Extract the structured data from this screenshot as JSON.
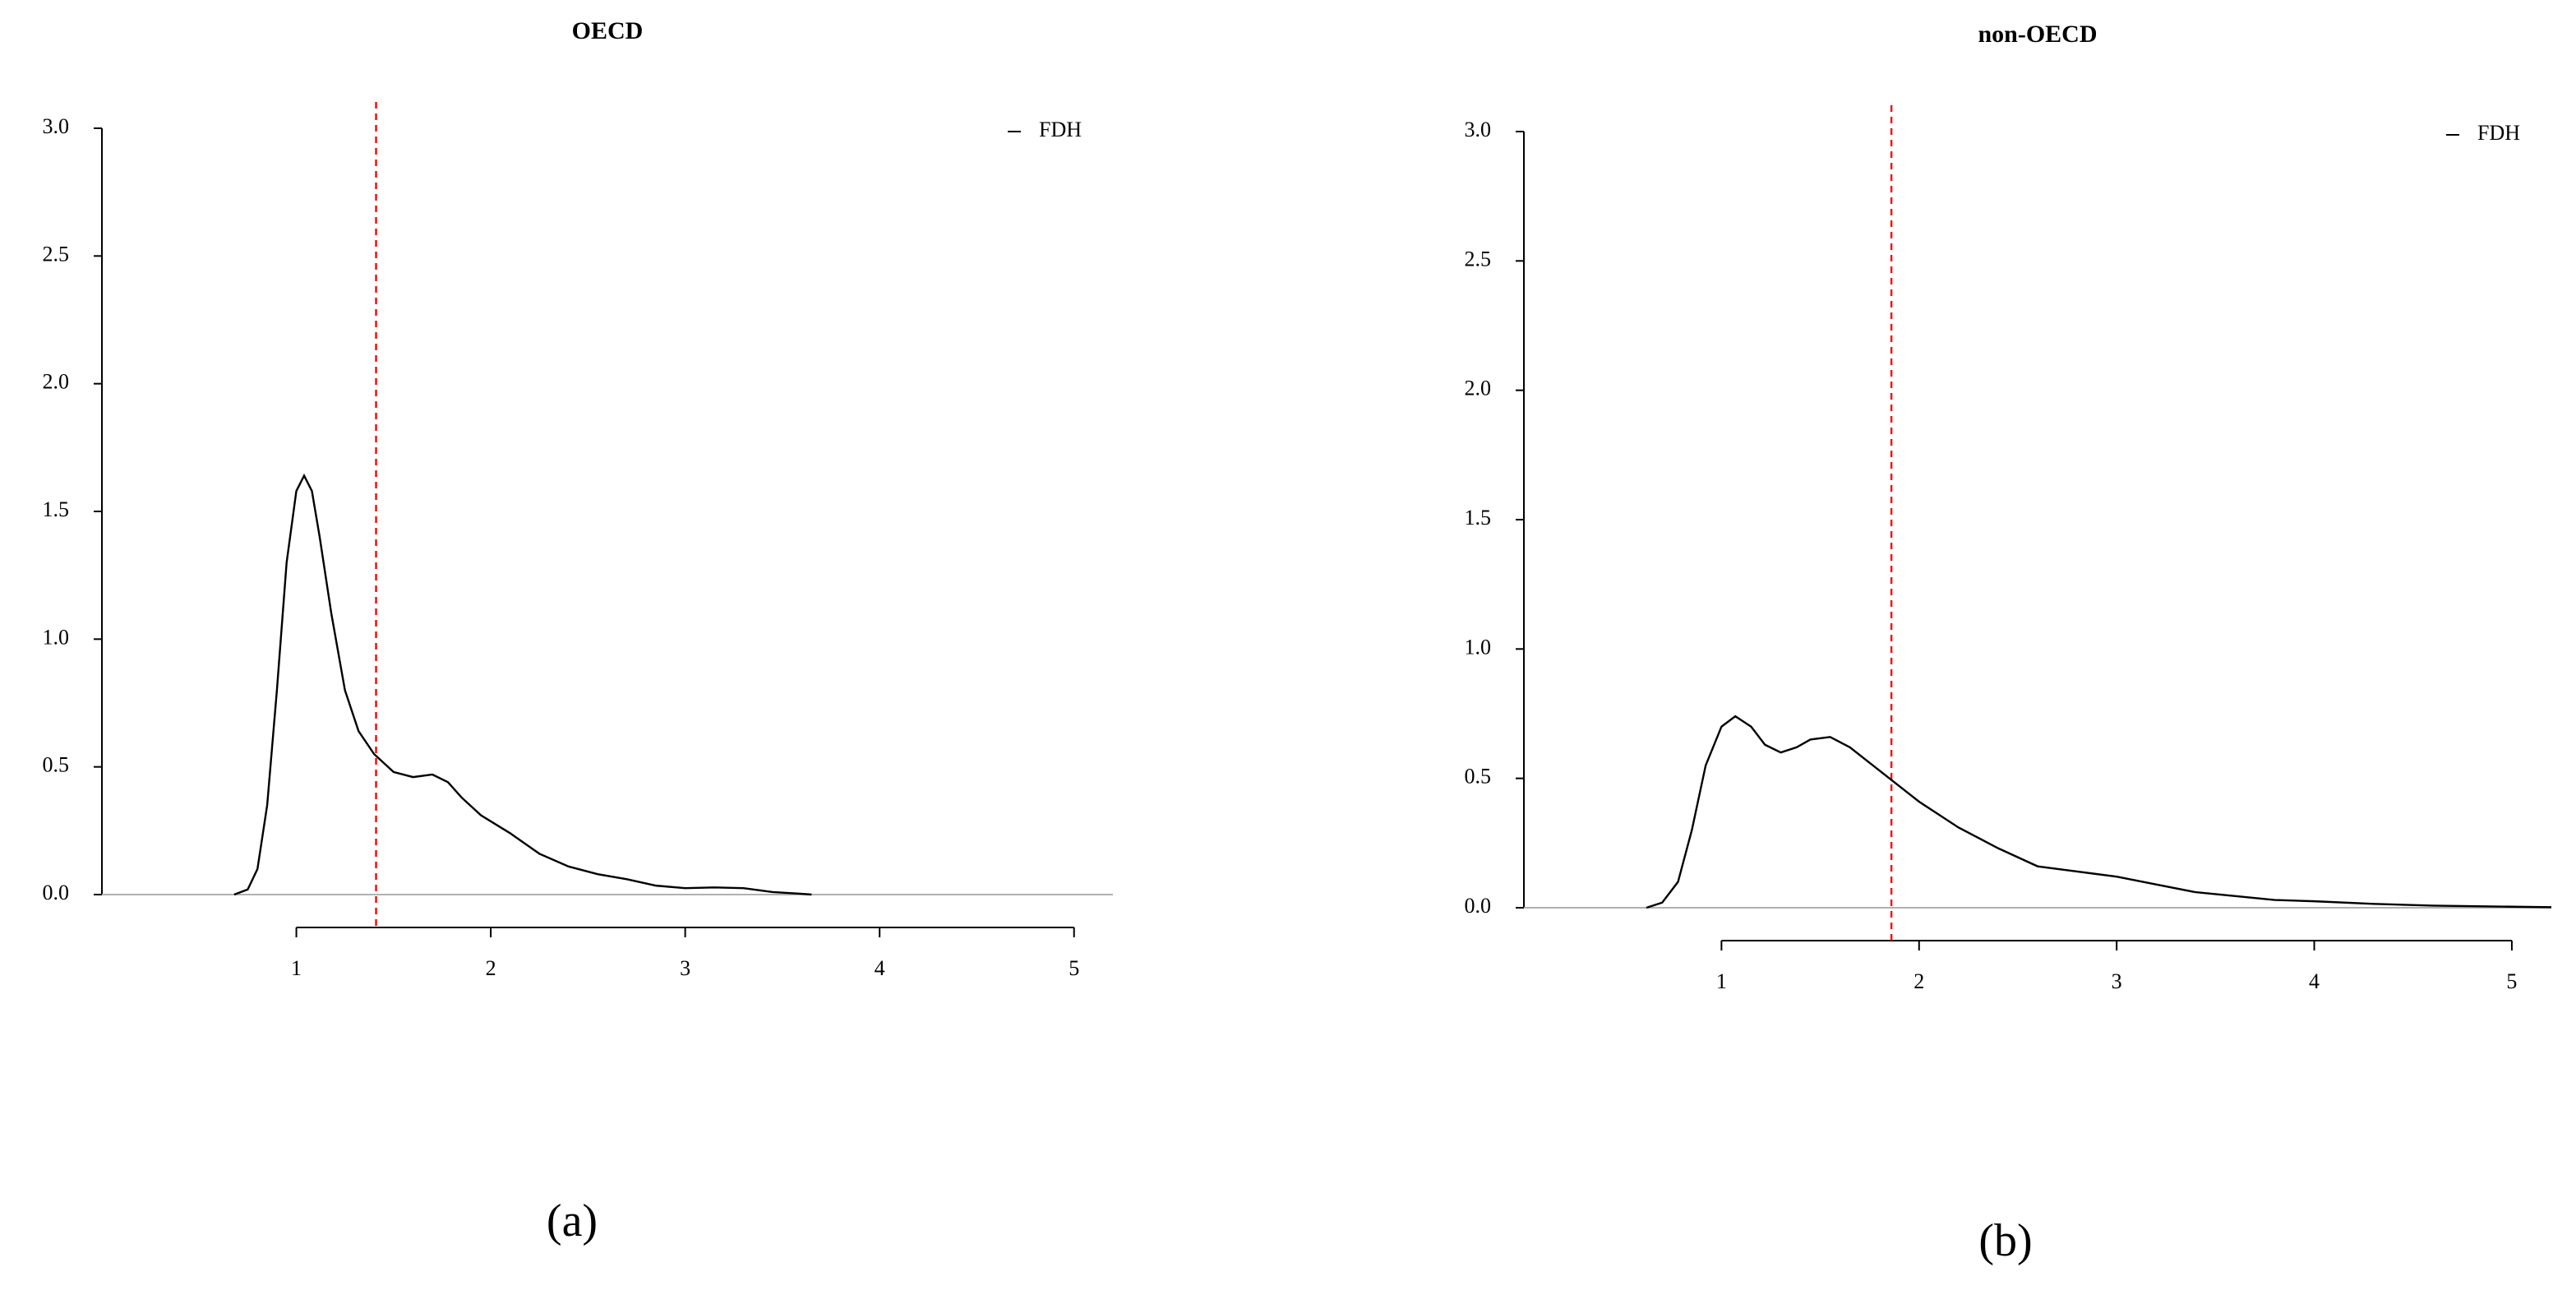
{
  "chart_data": [
    {
      "type": "line",
      "title": "OECD",
      "caption": "(a)",
      "x": [
        0.68,
        0.75,
        0.8,
        0.85,
        0.9,
        0.95,
        1.0,
        1.04,
        1.08,
        1.12,
        1.18,
        1.25,
        1.32,
        1.4,
        1.5,
        1.6,
        1.7,
        1.78,
        1.85,
        1.95,
        2.1,
        2.25,
        2.4,
        2.55,
        2.7,
        2.85,
        3.0,
        3.15,
        3.3,
        3.45,
        3.6,
        3.65
      ],
      "series": [
        {
          "name": "FDH",
          "color": "#000000",
          "values": [
            0.0,
            0.02,
            0.1,
            0.35,
            0.8,
            1.3,
            1.58,
            1.64,
            1.58,
            1.4,
            1.1,
            0.8,
            0.64,
            0.55,
            0.48,
            0.46,
            0.47,
            0.44,
            0.38,
            0.31,
            0.24,
            0.16,
            0.11,
            0.08,
            0.06,
            0.035,
            0.025,
            0.028,
            0.025,
            0.01,
            0.003,
            0.0
          ]
        }
      ],
      "xlim": [
        0,
        5.2
      ],
      "ylim": [
        0,
        3
      ],
      "xticks": [
        1,
        2,
        3,
        4,
        5
      ],
      "yticks": [
        {
          "value": 0,
          "label": "0.0"
        },
        0.5,
        {
          "value": 1,
          "label": "1.0"
        },
        1.5,
        {
          "value": 2,
          "label": "2.0"
        },
        2.5,
        {
          "value": 3,
          "label": "3.0"
        }
      ],
      "reference_line": {
        "x": 1.41,
        "color": "#ff0000"
      },
      "legend": "top-right"
    },
    {
      "type": "line",
      "title": "non-OECD",
      "caption": "(b)",
      "x": [
        0.62,
        0.7,
        0.78,
        0.85,
        0.92,
        1.0,
        1.07,
        1.15,
        1.22,
        1.3,
        1.38,
        1.45,
        1.55,
        1.65,
        1.75,
        1.85,
        2.0,
        2.2,
        2.4,
        2.6,
        2.8,
        3.0,
        3.2,
        3.4,
        3.6,
        3.8,
        4.0,
        4.3,
        4.6,
        5.0,
        5.2
      ],
      "series": [
        {
          "name": "FDH",
          "color": "#000000",
          "values": [
            0.0,
            0.02,
            0.1,
            0.3,
            0.55,
            0.7,
            0.74,
            0.7,
            0.63,
            0.6,
            0.62,
            0.65,
            0.66,
            0.62,
            0.56,
            0.5,
            0.41,
            0.31,
            0.23,
            0.16,
            0.14,
            0.12,
            0.09,
            0.06,
            0.045,
            0.03,
            0.025,
            0.015,
            0.008,
            0.004,
            0.002
          ]
        }
      ],
      "xlim": [
        0,
        5.2
      ],
      "ylim": [
        0,
        3
      ],
      "xticks": [
        1,
        2,
        3,
        4,
        5
      ],
      "yticks": [
        {
          "value": 0,
          "label": "0.0"
        },
        0.5,
        {
          "value": 1,
          "label": "1.0"
        },
        1.5,
        {
          "value": 2,
          "label": "2.0"
        },
        2.5,
        {
          "value": 3,
          "label": "3.0"
        }
      ],
      "reference_line": {
        "x": 1.86,
        "color": "#ff0000"
      },
      "legend": "top-right"
    }
  ]
}
